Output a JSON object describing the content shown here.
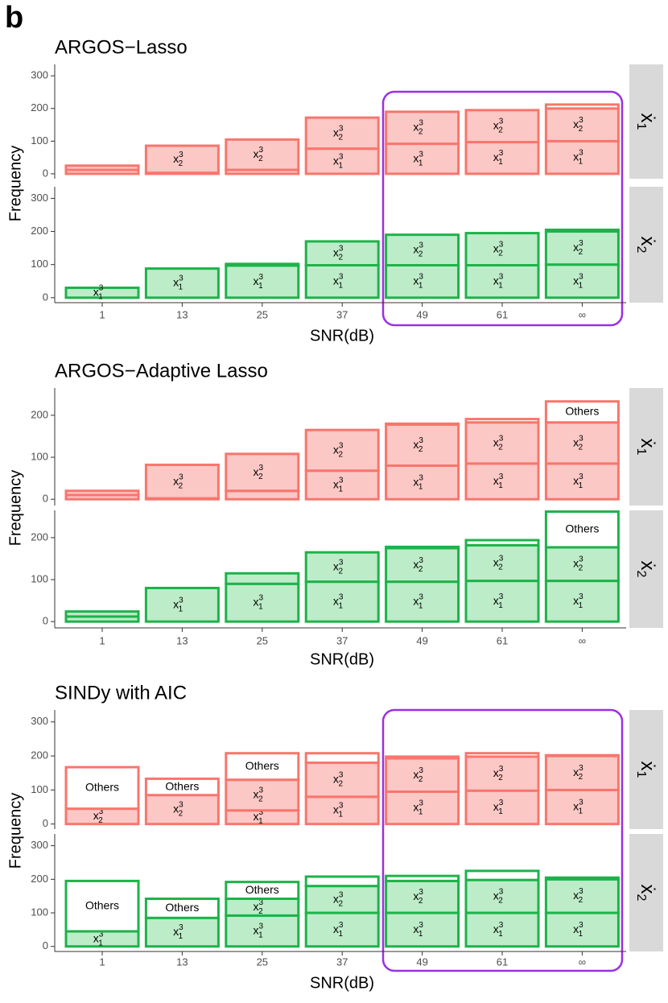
{
  "panel_label": "b",
  "chart_data": [
    {
      "type": "bar",
      "stacked": true,
      "title": "ARGOS−Lasso",
      "xlabel": "SNR(dB)",
      "ylabel": "Frequency",
      "categories": [
        "1",
        "13",
        "25",
        "37",
        "49",
        "61",
        "∞"
      ],
      "ylim": [
        -15,
        335
      ],
      "yticks": [
        0,
        100,
        200,
        300
      ],
      "facets": [
        {
          "label": {
            "base": "ẋ",
            "sub": "1"
          },
          "color": "#f8766d",
          "fill": "#fcc8c6",
          "series": [
            {
              "name": {
                "base": "x",
                "sup": "3",
                "sub": "1"
              },
              "values": [
                12,
                3,
                12,
                77,
                92,
                97,
                100
              ]
            },
            {
              "name": {
                "base": "x",
                "sup": "3",
                "sub": "2"
              },
              "values": [
                13,
                83,
                93,
                95,
                98,
                98,
                100
              ]
            },
            {
              "name": "Others",
              "fill": "#ffffff",
              "values": [
                0,
                0,
                0,
                0,
                0,
                0,
                12
              ]
            }
          ]
        },
        {
          "label": {
            "base": "ẋ",
            "sub": "2"
          },
          "color": "#1db34a",
          "fill": "#bdecc9",
          "series": [
            {
              "name": {
                "base": "x",
                "sup": "3",
                "sub": "1"
              },
              "values": [
                30,
                88,
                97,
                98,
                98,
                98,
                100
              ]
            },
            {
              "name": {
                "base": "x",
                "sup": "3",
                "sub": "2"
              },
              "values": [
                0,
                0,
                5,
                72,
                92,
                97,
                100
              ]
            },
            {
              "name": "Others",
              "fill": "#ffffff",
              "values": [
                0,
                0,
                0,
                0,
                0,
                0,
                5
              ]
            }
          ]
        }
      ]
    },
    {
      "type": "bar",
      "stacked": true,
      "title": "ARGOS−Adaptive Lasso",
      "xlabel": "SNR(dB)",
      "ylabel": "Frequency",
      "categories": [
        "1",
        "13",
        "25",
        "37",
        "49",
        "61",
        "∞"
      ],
      "ylim": [
        -15,
        265
      ],
      "yticks": [
        0,
        100,
        200
      ],
      "facets": [
        {
          "label": {
            "base": "ẋ",
            "sub": "1"
          },
          "color": "#f8766d",
          "fill": "#fcc8c6",
          "series": [
            {
              "name": {
                "base": "x",
                "sup": "3",
                "sub": "1"
              },
              "values": [
                10,
                2,
                20,
                68,
                80,
                85,
                85
              ]
            },
            {
              "name": {
                "base": "x",
                "sup": "3",
                "sub": "2"
              },
              "values": [
                10,
                80,
                88,
                97,
                98,
                98,
                98
              ]
            },
            {
              "name": "Others",
              "fill": "#ffffff",
              "values": [
                0,
                0,
                0,
                0,
                2,
                8,
                50
              ]
            }
          ]
        },
        {
          "label": {
            "base": "ẋ",
            "sub": "2"
          },
          "color": "#1db34a",
          "fill": "#bdecc9",
          "series": [
            {
              "name": {
                "base": "x",
                "sup": "3",
                "sub": "1"
              },
              "values": [
                12,
                80,
                90,
                95,
                95,
                97,
                97
              ]
            },
            {
              "name": {
                "base": "x",
                "sup": "3",
                "sub": "2"
              },
              "values": [
                12,
                0,
                25,
                70,
                80,
                85,
                80
              ]
            },
            {
              "name": "Others",
              "fill": "#ffffff",
              "values": [
                0,
                0,
                0,
                0,
                3,
                12,
                85
              ]
            }
          ]
        }
      ]
    },
    {
      "type": "bar",
      "stacked": true,
      "title": "SINDy with AIC",
      "xlabel": "SNR(dB)",
      "ylabel": "Frequency",
      "categories": [
        "1",
        "13",
        "25",
        "37",
        "49",
        "61",
        "∞"
      ],
      "ylim": [
        -15,
        335
      ],
      "yticks": [
        0,
        100,
        200,
        300
      ],
      "facets": [
        {
          "label": {
            "base": "ẋ",
            "sub": "1"
          },
          "color": "#f8766d",
          "fill": "#fcc8c6",
          "series": [
            {
              "name": {
                "base": "x",
                "sup": "3",
                "sub": "1"
              },
              "values": [
                0,
                0,
                40,
                80,
                95,
                98,
                100
              ]
            },
            {
              "name": {
                "base": "x",
                "sup": "3",
                "sub": "2"
              },
              "values": [
                45,
                85,
                90,
                100,
                98,
                100,
                100
              ]
            },
            {
              "name": "Others",
              "fill": "#ffffff",
              "values": [
                122,
                48,
                78,
                28,
                5,
                10,
                2
              ]
            }
          ]
        },
        {
          "label": {
            "base": "ẋ",
            "sub": "2"
          },
          "color": "#1db34a",
          "fill": "#bdecc9",
          "series": [
            {
              "name": {
                "base": "x",
                "sup": "3",
                "sub": "1"
              },
              "values": [
                45,
                85,
                92,
                100,
                100,
                100,
                100
              ]
            },
            {
              "name": {
                "base": "x",
                "sup": "3",
                "sub": "2"
              },
              "values": [
                0,
                0,
                50,
                80,
                95,
                98,
                100
              ]
            },
            {
              "name": "Others",
              "fill": "#ffffff",
              "values": [
                150,
                57,
                50,
                28,
                15,
                27,
                5
              ]
            }
          ]
        }
      ]
    }
  ]
}
